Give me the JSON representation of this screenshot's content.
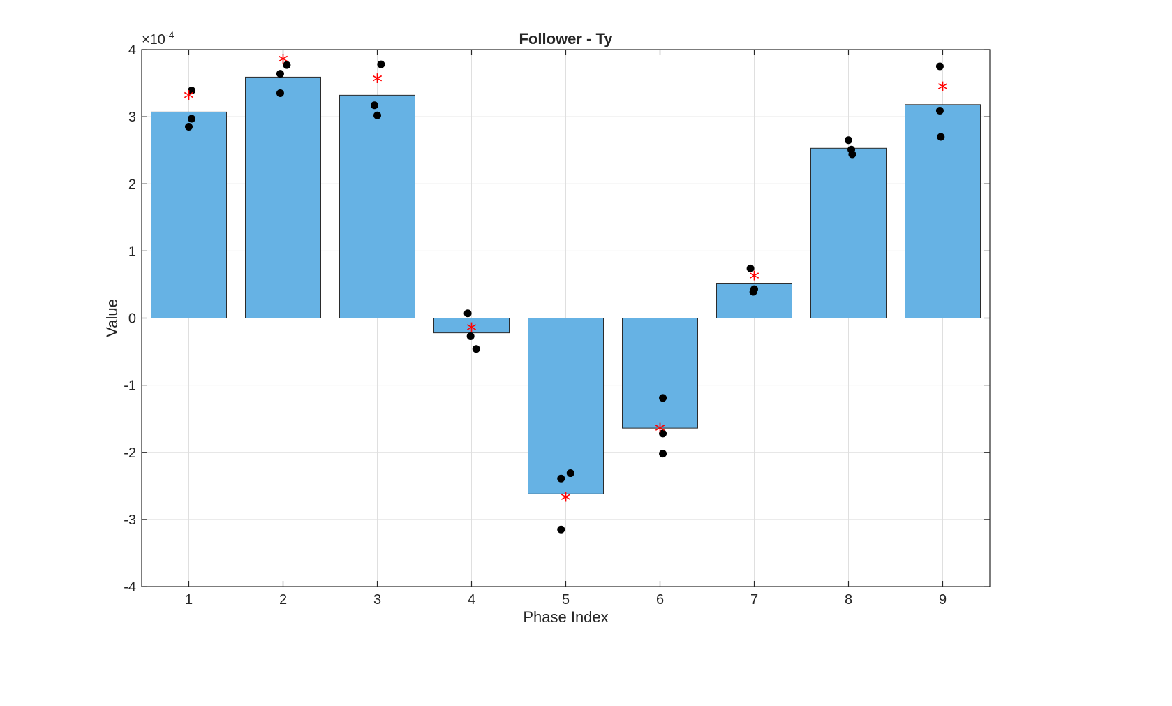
{
  "chart_data": {
    "type": "bar",
    "title": "Follower - Ty",
    "xlabel": "Phase Index",
    "ylabel": "Value",
    "y_exponent_label": "×10",
    "y_exponent_power": "-4",
    "categories": [
      "1",
      "2",
      "3",
      "4",
      "5",
      "6",
      "7",
      "8",
      "9"
    ],
    "values": [
      3.07,
      3.59,
      3.32,
      -0.22,
      -2.62,
      -1.64,
      0.52,
      2.53,
      3.18
    ],
    "mean_markers": [
      3.3,
      3.84,
      3.55,
      -0.16,
      -2.69,
      -1.66,
      0.61,
      null,
      3.43
    ],
    "points": [
      [
        {
          "x": 1.0,
          "y": 2.85
        },
        {
          "x": 1.03,
          "y": 2.97
        },
        {
          "x": 1.03,
          "y": 3.39
        }
      ],
      [
        {
          "x": 1.97,
          "y": 3.35
        },
        {
          "x": 1.97,
          "y": 3.64
        },
        {
          "x": 2.04,
          "y": 3.77
        }
      ],
      [
        {
          "x": 2.97,
          "y": 3.17
        },
        {
          "x": 3.0,
          "y": 3.02
        },
        {
          "x": 3.04,
          "y": 3.78
        }
      ],
      [
        {
          "x": 3.96,
          "y": 0.07
        },
        {
          "x": 3.99,
          "y": -0.27
        },
        {
          "x": 4.05,
          "y": -0.46
        }
      ],
      [
        {
          "x": 4.95,
          "y": -2.39
        },
        {
          "x": 4.95,
          "y": -3.15
        },
        {
          "x": 5.05,
          "y": -2.31
        }
      ],
      [
        {
          "x": 6.03,
          "y": -1.19
        },
        {
          "x": 6.03,
          "y": -1.72
        },
        {
          "x": 6.03,
          "y": -2.02
        }
      ],
      [
        {
          "x": 6.96,
          "y": 0.74
        },
        {
          "x": 6.99,
          "y": 0.39
        },
        {
          "x": 7.0,
          "y": 0.43
        }
      ],
      [
        {
          "x": 8.0,
          "y": 2.65
        },
        {
          "x": 8.03,
          "y": 2.51
        },
        {
          "x": 8.04,
          "y": 2.44
        }
      ],
      [
        {
          "x": 8.97,
          "y": 3.75
        },
        {
          "x": 8.97,
          "y": 3.09
        },
        {
          "x": 8.98,
          "y": 2.7
        }
      ]
    ],
    "ylim": [
      -4,
      4
    ],
    "xlim": [
      0.5,
      9.5
    ],
    "y_ticks": [
      "-4",
      "-3",
      "-2",
      "-1",
      "0",
      "1",
      "2",
      "3",
      "4"
    ],
    "grid": true,
    "colors": {
      "bar": "#66b2e4",
      "point": "#000000",
      "mean_marker": "#ff0000"
    }
  }
}
